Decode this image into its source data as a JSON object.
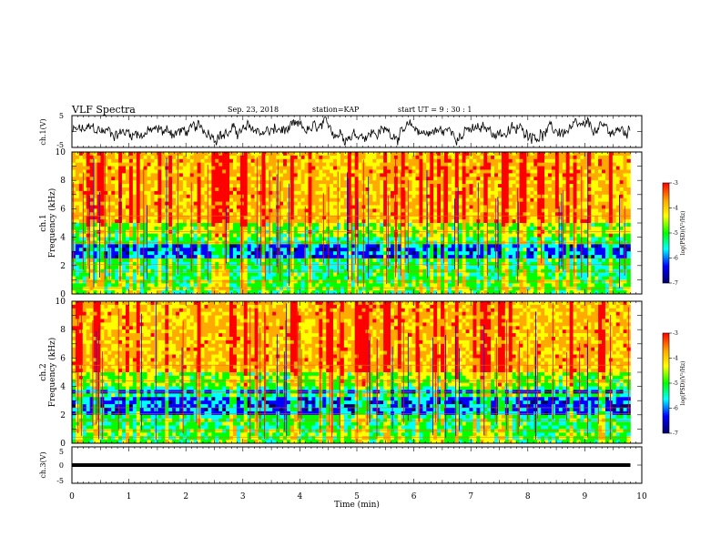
{
  "header": {
    "title": "VLF Spectra",
    "date": "Sep. 23, 2018",
    "station": "station=KAP",
    "start_ut": "start  UT =   9  : 30 : 1"
  },
  "chart_data": [
    {
      "type": "line",
      "panel": "waveform-ch1",
      "ylabel": "ch.1(V)",
      "ylim": [
        -5,
        5
      ],
      "yticks": [
        "5",
        "-5"
      ],
      "xlim": [
        0,
        10
      ],
      "data_xlim": [
        0,
        9.8
      ]
    },
    {
      "type": "heatmap",
      "panel": "spectrogram-ch1",
      "ylabel_top": "ch.1",
      "ylabel": "Frequency (kHz)",
      "ylim": [
        0,
        10
      ],
      "yticks": [
        "0",
        "2",
        "4",
        "6",
        "8",
        "10"
      ],
      "xlim": [
        0,
        10
      ],
      "data_xlim": [
        0,
        9.8
      ],
      "quiet_bands_khz": [
        [
          2.6,
          3.4
        ],
        [
          3.9,
          4.1
        ]
      ],
      "colorbar": {
        "label": "log(PSD)(V²/Hz)",
        "range": [
          -7,
          -3
        ],
        "ticks": [
          "-3",
          "-4",
          "-5",
          "-6",
          "-7"
        ]
      }
    },
    {
      "type": "heatmap",
      "panel": "spectrogram-ch2",
      "ylabel_top": "ch.2",
      "ylabel": "Frequency (kHz)",
      "ylim": [
        0,
        10
      ],
      "yticks": [
        "0",
        "2",
        "4",
        "6",
        "8",
        "10"
      ],
      "xlim": [
        0,
        10
      ],
      "data_xlim": [
        0,
        9.8
      ],
      "quiet_bands_khz": [
        [
          2.0,
          3.2
        ],
        [
          3.5,
          3.8
        ]
      ],
      "colorbar": {
        "label": "log(PSD)(V²/Hz)",
        "range": [
          -7,
          -3
        ],
        "ticks": [
          "-3",
          "-4",
          "-5",
          "-6",
          "-7"
        ]
      }
    },
    {
      "type": "line",
      "panel": "waveform-ch3",
      "ylabel": "ch.3(V)",
      "ylim": [
        -5,
        5
      ],
      "yticks": [
        "5",
        "0",
        "-5"
      ],
      "xlim": [
        0,
        10
      ],
      "data_xlim": [
        0,
        9.8
      ],
      "value": 0,
      "xlabel": "Time (min)",
      "xticks": [
        "0",
        "1",
        "2",
        "3",
        "4",
        "5",
        "6",
        "7",
        "8",
        "9",
        "10"
      ]
    }
  ],
  "colors": {
    "axis": "#000000",
    "colormap": [
      "#ff0000",
      "#ffaa00",
      "#ffff00",
      "#00ff00",
      "#00ffff",
      "#0000ff",
      "#000066"
    ]
  }
}
